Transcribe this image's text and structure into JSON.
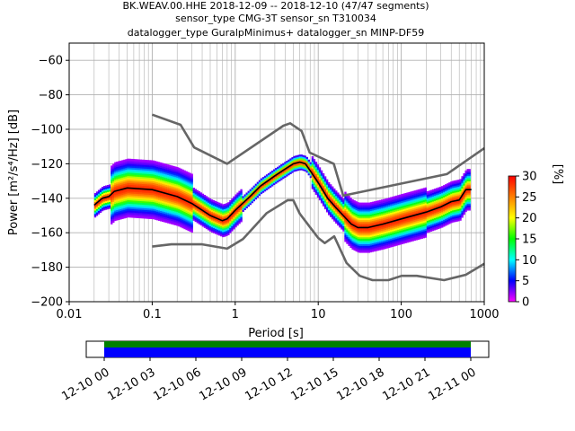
{
  "chart_data": {
    "type": "heatmap",
    "title_lines": [
      "BK.WEAV.00.HHE   2018-12-09 -- 2018-12-10  (47/47 segments)",
      "sensor_type CMG-3T sensor_sn T310034",
      "datalogger_type GuralpMinimus+ datalogger_sn MINP-DF59"
    ],
    "xlabel": "Period [s]",
    "ylabel": "Power [m²/s⁴/Hz] [dB]",
    "x_scale": "log",
    "xlim": [
      0.01,
      1000
    ],
    "ylim": [
      -200,
      -50
    ],
    "x_ticks": [
      {
        "value": 0.01,
        "label": "0.01"
      },
      {
        "value": 0.1,
        "label": "0.1"
      },
      {
        "value": 1,
        "label": "1"
      },
      {
        "value": 10,
        "label": "10"
      },
      {
        "value": 100,
        "label": "100"
      },
      {
        "value": 1000,
        "label": "1000"
      }
    ],
    "y_ticks": [
      {
        "value": -60,
        "label": "−60"
      },
      {
        "value": -80,
        "label": "−80"
      },
      {
        "value": -100,
        "label": "−100"
      },
      {
        "value": -120,
        "label": "−120"
      },
      {
        "value": -140,
        "label": "−140"
      },
      {
        "value": -160,
        "label": "−160"
      },
      {
        "value": -180,
        "label": "−180"
      },
      {
        "value": -200,
        "label": "−200"
      }
    ],
    "grid": true,
    "noise_models": {
      "high": [
        [
          0.1,
          -91.5
        ],
        [
          0.22,
          -97.4
        ],
        [
          0.32,
          -110.5
        ],
        [
          0.8,
          -120
        ],
        [
          3.8,
          -97.9
        ],
        [
          4.6,
          -96.5
        ],
        [
          6.3,
          -101
        ],
        [
          7.9,
          -113.5
        ],
        [
          15.4,
          -120
        ],
        [
          20,
          -138.5
        ],
        [
          354.8,
          -126
        ],
        [
          1000,
          -111
        ]
      ],
      "low": [
        [
          0.1,
          -168
        ],
        [
          0.17,
          -166.7
        ],
        [
          0.4,
          -166.7
        ],
        [
          0.8,
          -169.2
        ],
        [
          1.24,
          -163.7
        ],
        [
          2.4,
          -148.6
        ],
        [
          4.3,
          -141.1
        ],
        [
          5,
          -141.1
        ],
        [
          6,
          -149
        ],
        [
          10,
          -163
        ],
        [
          12,
          -166
        ],
        [
          15.6,
          -162.1
        ],
        [
          21.9,
          -177.5
        ],
        [
          31.6,
          -185
        ],
        [
          45,
          -187.5
        ],
        [
          70,
          -187.5
        ],
        [
          101,
          -185
        ],
        [
          154,
          -185
        ],
        [
          328,
          -187.5
        ],
        [
          600,
          -184.4
        ],
        [
          1000,
          -178
        ]
      ]
    },
    "mode_curve": [
      [
        0.02,
        -144
      ],
      [
        0.025,
        -140
      ],
      [
        0.03,
        -139
      ],
      [
        0.035,
        -136
      ],
      [
        0.05,
        -134
      ],
      [
        0.1,
        -135
      ],
      [
        0.2,
        -139
      ],
      [
        0.3,
        -143
      ],
      [
        0.5,
        -150
      ],
      [
        0.7,
        -153
      ],
      [
        0.8,
        -152
      ],
      [
        1,
        -147
      ],
      [
        1.5,
        -139
      ],
      [
        2,
        -133
      ],
      [
        3,
        -127
      ],
      [
        4,
        -123
      ],
      [
        5,
        -120
      ],
      [
        6,
        -119
      ],
      [
        7,
        -120
      ],
      [
        8,
        -124
      ],
      [
        10,
        -131
      ],
      [
        13,
        -140
      ],
      [
        16,
        -145
      ],
      [
        20,
        -150
      ],
      [
        25,
        -155
      ],
      [
        30,
        -157
      ],
      [
        40,
        -157
      ],
      [
        60,
        -155
      ],
      [
        100,
        -152
      ],
      [
        200,
        -148
      ],
      [
        300,
        -145
      ],
      [
        400,
        -142
      ],
      [
        500,
        -141
      ],
      [
        600,
        -135
      ],
      [
        700,
        -135
      ]
    ],
    "colorbar": {
      "label": "[%]",
      "min": 0,
      "max": 30,
      "ticks": [
        {
          "value": 0,
          "label": "0"
        },
        {
          "value": 5,
          "label": "5"
        },
        {
          "value": 10,
          "label": "10"
        },
        {
          "value": 15,
          "label": "15"
        },
        {
          "value": 20,
          "label": "20"
        },
        {
          "value": 25,
          "label": "25"
        },
        {
          "value": 30,
          "label": "30"
        }
      ],
      "colors": [
        "#ff00ff",
        "#0000ff",
        "#00ffff",
        "#00ff00",
        "#ffff00",
        "#ff8000",
        "#ff0000"
      ]
    },
    "coverage": {
      "time_labels": [
        "12-10 00",
        "12-10 03",
        "12-10 06",
        "12-10 09",
        "12-10 12",
        "12-10 15",
        "12-10 18",
        "12-10 21",
        "12-11 00"
      ],
      "data_color": "#0000ff",
      "gap_color": "#008000"
    }
  }
}
